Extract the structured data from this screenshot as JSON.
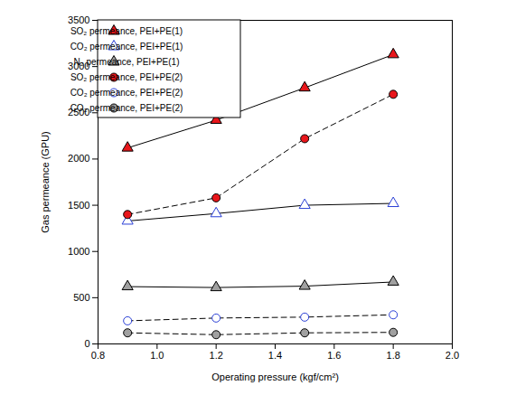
{
  "chart_data": {
    "type": "line",
    "x_label": "Operating pressure (kgf/cm²)",
    "y_label": "Gas permeance (GPU)",
    "xlim": [
      0.8,
      2.0
    ],
    "xticks": [
      0.8,
      {
        "value": 1.0,
        "label": "1.0"
      },
      1.2,
      1.4,
      1.6,
      1.8,
      {
        "value": 2.0,
        "label": "2.0"
      }
    ],
    "ylim": [
      0,
      3500
    ],
    "yticks": [
      0,
      500,
      1000,
      1500,
      2000,
      2500,
      3000,
      3500
    ],
    "grid": false,
    "legend": "upper left",
    "x": [
      0.9,
      1.2,
      1.5,
      1.8
    ],
    "series": [
      {
        "name": "SO₂ permeance, PEI+PE(1)",
        "color": "#e8161b",
        "marker": "triangle",
        "line_style": "solid",
        "values": [
          2120,
          2420,
          2770,
          3130
        ]
      },
      {
        "name": "CO₂ permeance, PEI+PE(1)",
        "color": "#2a3fd6",
        "marker": "triangle-open",
        "line_style": "solid",
        "values": [
          1330,
          1410,
          1500,
          1520
        ]
      },
      {
        "name": "N₂ permeance, PEI+PE(1)",
        "color": "#a0a0a0",
        "marker": "triangle",
        "line_style": "solid",
        "values": [
          620,
          610,
          625,
          670
        ]
      },
      {
        "name": "SO₂ permeance, PEI+PE(2)",
        "color": "#e8161b",
        "marker": "circle",
        "line_style": "dashed",
        "values": [
          1400,
          1580,
          2220,
          2700
        ]
      },
      {
        "name": "CO₂ permeance, PEI+PE(2)",
        "color": "#2a3fd6",
        "marker": "circle-open",
        "line_style": "dashed",
        "values": [
          250,
          280,
          290,
          315
        ]
      },
      {
        "name": "CO₂ permeance, PEI+PE(2)",
        "color": "#a0a0a0",
        "marker": "circle",
        "line_style": "dashed",
        "values": [
          120,
          100,
          120,
          125
        ]
      }
    ]
  }
}
